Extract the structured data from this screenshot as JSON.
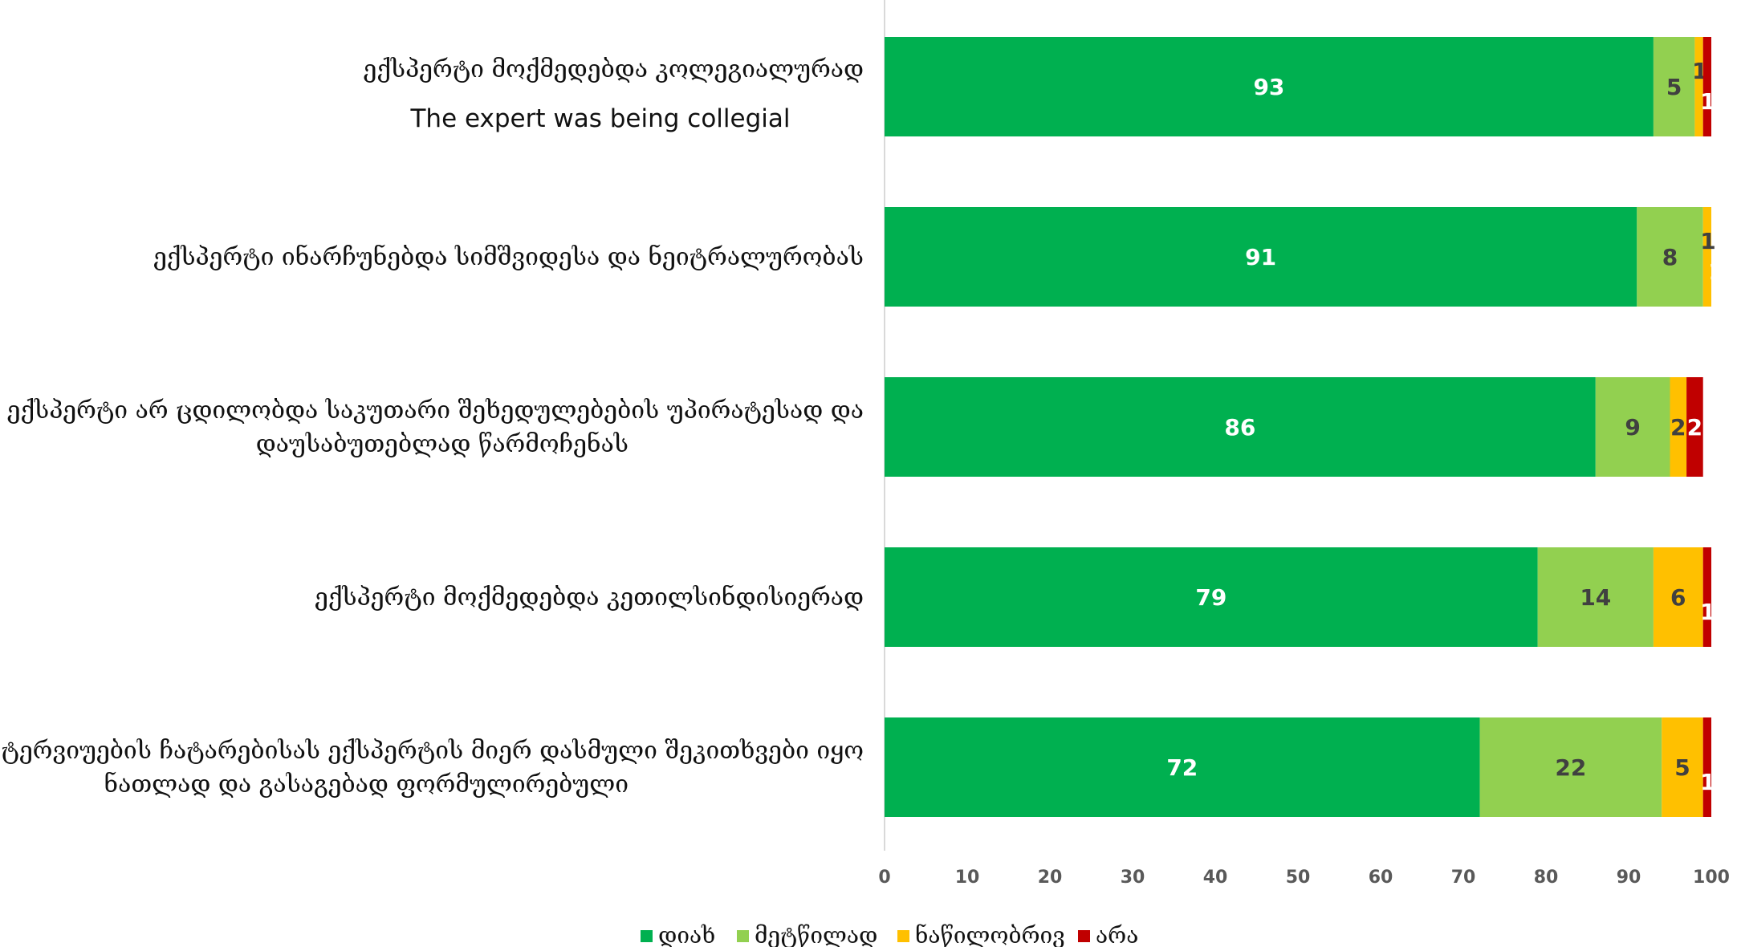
{
  "chart_data": {
    "type": "bar",
    "orientation": "horizontal",
    "stacked": true,
    "categories": [
      {
        "lines": [
          "ექსპერტი მოქმედებდა კოლეგიალურად"
        ],
        "sub": "The expert was being collegial"
      },
      {
        "lines": [
          "ექსპერტი ინარჩუნებდა სიმშვიდესა და ნეიტრალურობას"
        ],
        "sub": ""
      },
      {
        "lines": [
          "ექსპერტი არ ცდილობდა საკუთარი შეხედულებების უპირატესად და",
          "დაუსაბუთებლად წარმოჩენას"
        ],
        "sub": ""
      },
      {
        "lines": [
          "ექსპერტი მოქმედებდა კეთილსინდისიერად"
        ],
        "sub": ""
      },
      {
        "lines": [
          "ინტერვიუების ჩატარებისას ექსპერტის მიერ დასმული შეკითხვები იყო",
          "ნათლად და გასაგებად ფორმულირებული"
        ],
        "sub": ""
      }
    ],
    "series": [
      {
        "name": "დიახ",
        "color": "#00b050",
        "label_color": "#ffffff",
        "values": [
          93,
          91,
          86,
          79,
          72
        ]
      },
      {
        "name": "მეტწილად",
        "color": "#92d050",
        "label_color": "#404040",
        "values": [
          5,
          8,
          9,
          14,
          22
        ]
      },
      {
        "name": "ნაწილობრივ",
        "color": "#ffc000",
        "label_color": "#404040",
        "values": [
          1,
          1,
          2,
          6,
          5
        ]
      },
      {
        "name": "არა",
        "color": "#c00000",
        "label_color": "#ffffff",
        "values": [
          1,
          1,
          2,
          1,
          1
        ]
      }
    ],
    "xlim": [
      0,
      100
    ],
    "xticks": [
      "0",
      "10",
      "20",
      "30",
      "40",
      "50",
      "60",
      "70",
      "80",
      "90",
      "100"
    ],
    "legend_position": "bottom",
    "grid": false,
    "title": "",
    "xlabel": "",
    "ylabel": ""
  }
}
